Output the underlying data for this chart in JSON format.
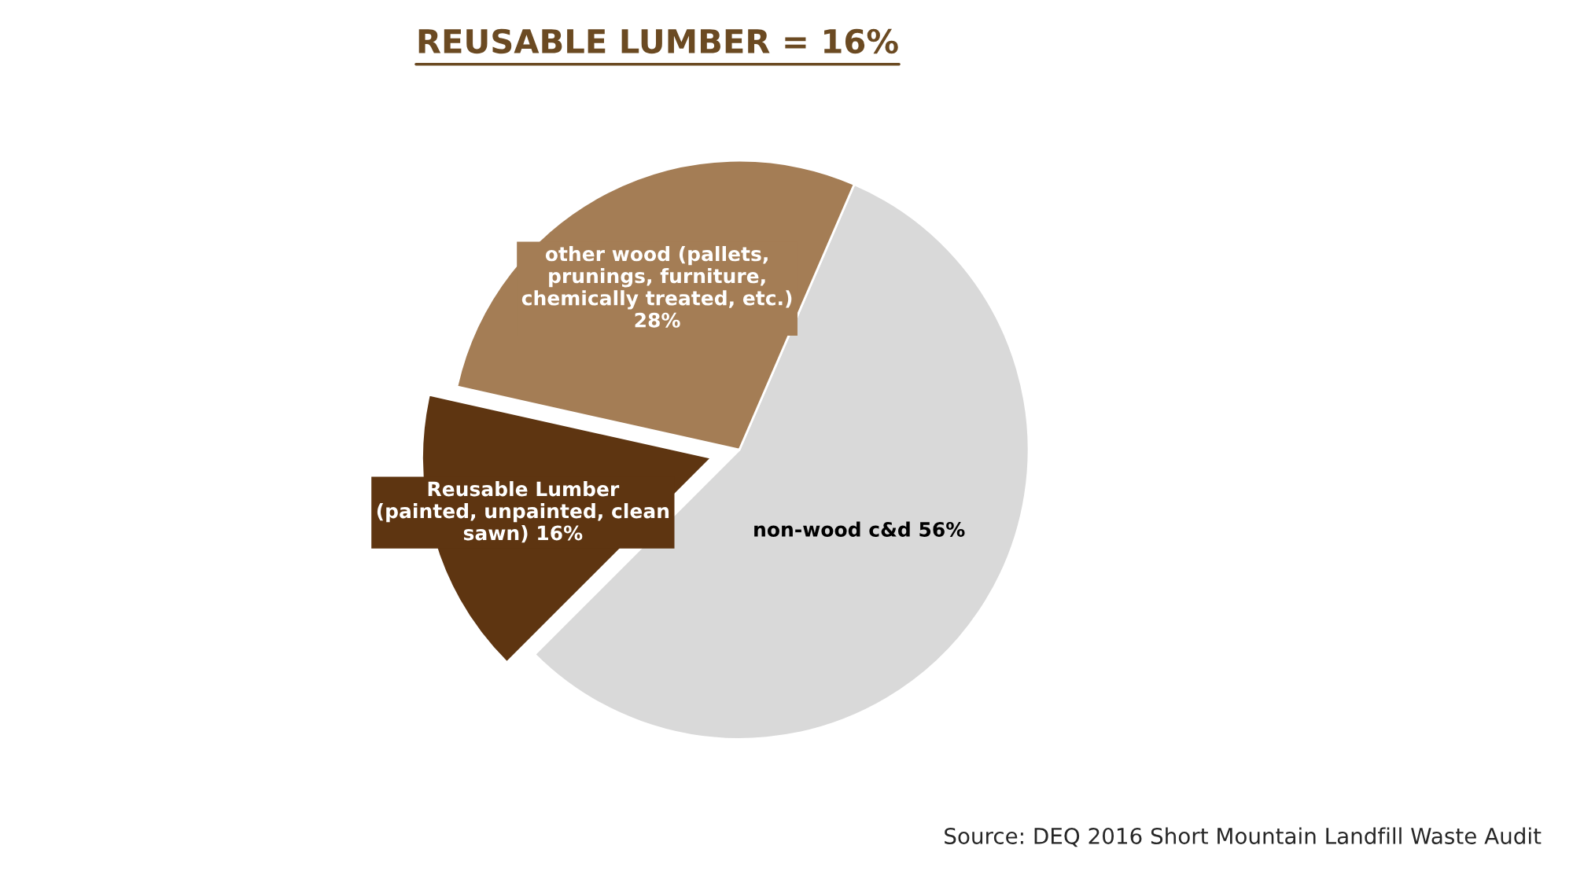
{
  "chart_data": {
    "type": "pie",
    "title": "REUSABLE LUMBER = 16%",
    "categories": [
      "non-wood c&d",
      "other wood (pallets,\nprunings, furniture,\nchemically treated, etc.)",
      "Reusable Lumber\n(painted, unpainted, clean\nsawn)"
    ],
    "values": [
      56,
      28,
      16
    ],
    "value_labels": [
      "56%",
      "28%",
      "16%"
    ],
    "colors": [
      "#d9d9d9",
      "#a47d55",
      "#5e3511"
    ],
    "annotations": [
      "Source: DEQ 2016 Short Mountain Landfill Waste Audit"
    ]
  }
}
